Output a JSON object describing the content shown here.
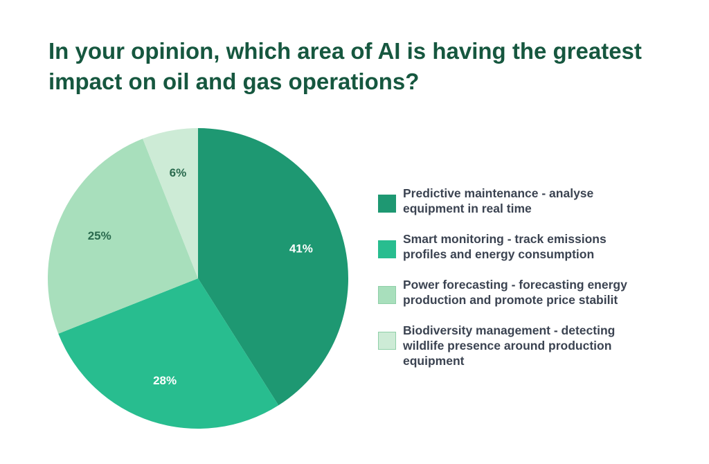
{
  "chart_data": {
    "type": "pie",
    "title": "In your opinion, which area of AI is having the greatest impact on oil and gas operations?",
    "slices": [
      {
        "label": "Predictive maintenance - analyse\n equipment in real time",
        "value": 41,
        "display": "41%",
        "color": "#1e9872",
        "text_color": "#ffffff"
      },
      {
        "label": "Smart monitoring - track emissions\nprofiles and energy consumption",
        "value": 28,
        "display": "28%",
        "color": "#28bd8f",
        "text_color": "#ffffff"
      },
      {
        "label": "Power forecasting - forecasting energy\nproduction and promote price stabilit",
        "value": 25,
        "display": "25%",
        "color": "#a8dfbc",
        "text_color": "#2a6a4e"
      },
      {
        "label": "Biodiversity management - detecting\nwildlife presence around production\nequipment",
        "value": 6,
        "display": "6%",
        "color": "#cdebd6",
        "text_color": "#2a6a4e"
      }
    ],
    "start_angle": "12 o'clock",
    "direction": "clockwise",
    "legend_position": "right"
  }
}
